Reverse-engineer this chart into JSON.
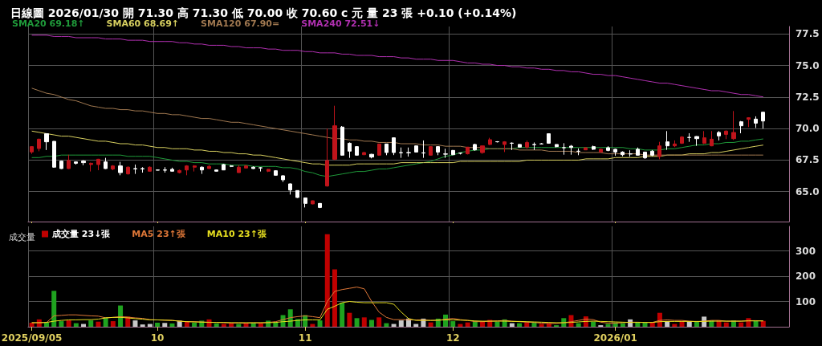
{
  "chart_data": [
    {
      "type": "candlestick",
      "title": "日線圖 2026/01/30 開 71.30 高 71.30 低 70.00 收 70.60 c 元 量 23 張 +0.10 (+0.14%)",
      "categories": [
        "2025/09/05",
        null,
        null,
        null,
        null,
        null,
        null,
        null,
        null,
        null,
        null,
        null,
        null,
        null,
        null,
        null,
        null,
        "10",
        null,
        null,
        null,
        null,
        null,
        null,
        null,
        null,
        null,
        null,
        null,
        null,
        null,
        null,
        null,
        null,
        null,
        null,
        null,
        "11",
        null,
        null,
        null,
        null,
        null,
        null,
        null,
        null,
        null,
        null,
        null,
        null,
        null,
        null,
        null,
        null,
        null,
        null,
        null,
        "12",
        null,
        null,
        null,
        null,
        null,
        null,
        null,
        null,
        null,
        null,
        null,
        null,
        null,
        null,
        null,
        null,
        null,
        null,
        null,
        null,
        null,
        "2026/01",
        null,
        null,
        null,
        null,
        null,
        null,
        null,
        null,
        null,
        null,
        null,
        null,
        null,
        null,
        null,
        null,
        null,
        null,
        null,
        null
      ],
      "series": [
        {
          "type": "candlestick",
          "ohlc": [
            [
              68.15,
              68.6,
              68.0,
              68.57
            ],
            [
              68.42,
              69.2,
              68.2,
              69.16
            ],
            [
              69.59,
              69.6,
              68.3,
              68.95
            ],
            [
              68.99,
              69.0,
              66.9,
              66.94
            ],
            [
              67.42,
              67.45,
              66.8,
              66.83
            ],
            [
              66.83,
              67.93,
              66.8,
              67.47
            ],
            [
              67.36,
              67.4,
              67.15,
              67.25
            ],
            [
              67.42,
              67.5,
              67.1,
              67.3
            ],
            [
              67.15,
              67.3,
              66.6,
              67.25
            ],
            [
              67.15,
              67.6,
              66.7,
              67.57
            ],
            [
              67.36,
              67.68,
              66.8,
              66.83
            ],
            [
              66.79,
              67.1,
              66.7,
              67.04
            ],
            [
              67.04,
              67.36,
              66.3,
              66.51
            ],
            [
              66.41,
              67.0,
              66.35,
              66.94
            ],
            [
              66.83,
              67.15,
              66.41,
              66.8
            ],
            [
              66.83,
              66.94,
              66.51,
              66.8
            ],
            [
              66.62,
              67.0,
              66.6,
              66.94
            ],
            [
              66.72,
              66.75,
              66.68,
              66.7
            ],
            [
              66.72,
              66.94,
              66.51,
              66.7
            ],
            [
              66.77,
              66.9,
              66.6,
              66.62
            ],
            [
              66.51,
              66.75,
              66.45,
              66.68
            ],
            [
              66.72,
              67.1,
              66.3,
              67.04
            ],
            [
              66.94,
              67.1,
              66.6,
              67.04
            ],
            [
              66.94,
              67.0,
              66.41,
              66.72
            ],
            [
              66.83,
              67.1,
              66.8,
              67.0
            ],
            [
              66.72,
              66.75,
              66.6,
              66.62
            ],
            [
              67.15,
              67.2,
              66.7,
              66.72
            ],
            [
              67.04,
              67.1,
              66.95,
              67.0
            ],
            [
              66.51,
              67.1,
              66.5,
              66.94
            ],
            [
              66.87,
              67.1,
              66.85,
              67.04
            ],
            [
              66.94,
              67.0,
              66.8,
              66.83
            ],
            [
              66.9,
              66.95,
              66.6,
              66.88
            ],
            [
              66.62,
              66.8,
              66.55,
              66.77
            ],
            [
              66.66,
              66.7,
              66.28,
              66.3
            ],
            [
              66.26,
              66.3,
              65.77,
              65.94
            ],
            [
              65.62,
              65.65,
              64.77,
              65.13
            ],
            [
              65.09,
              65.1,
              64.5,
              64.54
            ],
            [
              64.5,
              64.5,
              63.75,
              64.07
            ],
            [
              64.03,
              64.3,
              64.0,
              64.28
            ],
            [
              64.07,
              64.1,
              63.7,
              63.75
            ],
            [
              65.45,
              70.0,
              65.4,
              67.47
            ],
            [
              67.57,
              71.81,
              67.5,
              70.22
            ],
            [
              70.12,
              70.2,
              67.85,
              67.89
            ],
            [
              68.84,
              68.9,
              67.68,
              68.21
            ],
            [
              68.57,
              68.6,
              67.85,
              67.89
            ],
            [
              67.93,
              68.15,
              67.9,
              68.1
            ],
            [
              67.96,
              68.0,
              67.64,
              67.74
            ],
            [
              67.89,
              68.8,
              67.85,
              68.78
            ],
            [
              68.78,
              68.8,
              67.89,
              68.1
            ],
            [
              69.27,
              69.3,
              67.9,
              68.1
            ],
            [
              68.1,
              68.5,
              67.68,
              68.08
            ],
            [
              68.1,
              68.5,
              67.78,
              68.08
            ],
            [
              68.63,
              68.65,
              68.1,
              68.14
            ],
            [
              68.08,
              69.06,
              67.68,
              68.06
            ],
            [
              67.89,
              68.6,
              67.85,
              68.57
            ],
            [
              68.57,
              68.6,
              67.89,
              68.14
            ],
            [
              67.99,
              68.4,
              67.68,
              67.97
            ],
            [
              68.27,
              68.3,
              67.9,
              67.93
            ],
            [
              68.06,
              68.1,
              67.95,
              68.04
            ],
            [
              68.0,
              68.55,
              67.95,
              68.53
            ],
            [
              68.74,
              68.8,
              68.25,
              68.31
            ],
            [
              68.1,
              68.65,
              68.0,
              68.63
            ],
            [
              68.74,
              69.27,
              68.7,
              69.12
            ],
            [
              68.96,
              69.0,
              68.9,
              68.95
            ],
            [
              68.74,
              69.0,
              68.14,
              68.95
            ],
            [
              68.85,
              68.9,
              68.3,
              68.83
            ],
            [
              68.74,
              68.8,
              68.5,
              68.53
            ],
            [
              68.53,
              69.05,
              68.4,
              68.89
            ],
            [
              68.74,
              68.9,
              68.3,
              68.72
            ],
            [
              68.79,
              68.85,
              68.75,
              68.78
            ],
            [
              69.59,
              69.6,
              68.8,
              68.84
            ],
            [
              68.74,
              68.75,
              68.5,
              68.57
            ],
            [
              68.49,
              68.84,
              67.93,
              68.48
            ],
            [
              68.61,
              68.7,
              67.93,
              68.5
            ],
            [
              68.21,
              68.43,
              67.89,
              68.2
            ],
            [
              68.31,
              68.5,
              68.3,
              68.48
            ],
            [
              68.57,
              68.65,
              68.3,
              68.36
            ],
            [
              68.14,
              68.4,
              68.1,
              68.36
            ],
            [
              68.48,
              68.6,
              68.2,
              68.27
            ],
            [
              68.36,
              68.4,
              67.85,
              68.14
            ],
            [
              68.14,
              68.2,
              67.8,
              67.93
            ],
            [
              68.0,
              68.28,
              67.78,
              67.98
            ],
            [
              68.36,
              68.5,
              67.85,
              67.89
            ],
            [
              68.14,
              68.15,
              67.6,
              67.68
            ],
            [
              68.21,
              68.3,
              67.8,
              67.89
            ],
            [
              67.79,
              68.95,
              67.57,
              68.63
            ],
            [
              68.95,
              69.8,
              68.31,
              68.63
            ],
            [
              68.63,
              69.06,
              68.53,
              68.78
            ],
            [
              68.84,
              69.4,
              68.78,
              69.33
            ],
            [
              69.3,
              69.63,
              68.95,
              69.29
            ],
            [
              69.37,
              69.4,
              68.63,
              69.2
            ],
            [
              68.84,
              69.8,
              68.78,
              69.27
            ],
            [
              68.63,
              69.8,
              68.6,
              69.16
            ],
            [
              69.69,
              69.8,
              69.06,
              69.42
            ],
            [
              69.54,
              69.85,
              69.16,
              69.8
            ],
            [
              69.2,
              71.39,
              69.1,
              69.69
            ],
            [
              70.54,
              70.6,
              69.63,
              70.22
            ],
            [
              70.73,
              70.9,
              70.12,
              70.86
            ],
            [
              70.75,
              70.97,
              70.05,
              70.43
            ],
            [
              71.3,
              71.3,
              70.0,
              70.6
            ]
          ],
          "colors": [
            "#c0141b",
            "#c0141b",
            "#ffffff",
            "#ffffff",
            "#ffffff",
            "#c0141b",
            "#ffffff",
            "#ffffff",
            "#c0141b",
            "#c0141b",
            "#ffffff",
            "#c0141b",
            "#ffffff",
            "#c0141b",
            "#ffffff",
            "#ffffff",
            "#c0141b",
            "#ffffff",
            "#ffffff",
            "#ffffff",
            "#c0141b",
            "#c0141b",
            "#c0141b",
            "#ffffff",
            "#c0141b",
            "#ffffff",
            "#ffffff",
            "#ffffff",
            "#c0141b",
            "#c0141b",
            "#ffffff",
            "#ffffff",
            "#c0141b",
            "#ffffff",
            "#ffffff",
            "#ffffff",
            "#ffffff",
            "#ffffff",
            "#c0141b",
            "#ffffff",
            "#c0141b",
            "#c0141b",
            "#ffffff",
            "#ffffff",
            "#ffffff",
            "#c0141b",
            "#ffffff",
            "#c0141b",
            "#ffffff",
            "#ffffff",
            "#ffffff",
            "#ffffff",
            "#ffffff",
            "#ffffff",
            "#c0141b",
            "#ffffff",
            "#ffffff",
            "#ffffff",
            "#ffffff",
            "#c0141b",
            "#ffffff",
            "#c0141b",
            "#c0141b",
            "#ffffff",
            "#c0141b",
            "#ffffff",
            "#ffffff",
            "#c0141b",
            "#ffffff",
            "#ffffff",
            "#ffffff",
            "#ffffff",
            "#ffffff",
            "#ffffff",
            "#ffffff",
            "#c0141b",
            "#ffffff",
            "#c0141b",
            "#ffffff",
            "#ffffff",
            "#ffffff",
            "#ffffff",
            "#ffffff",
            "#ffffff",
            "#ffffff",
            "#c0141b",
            "#ffffff",
            "#c0141b",
            "#c0141b",
            "#ffffff",
            "#ffffff",
            "#c0141b",
            "#c0141b",
            "#ffffff",
            "#c0141b",
            "#c0141b",
            "#ffffff",
            "#c0141b",
            "#ffffff",
            "#ffffff"
          ]
        },
        {
          "type": "line",
          "name": "SMA20 69.18↑",
          "color": "#1f9a3a",
          "values": [
            67.7,
            67.7,
            67.8,
            67.8,
            67.9,
            67.9,
            67.9,
            67.9,
            67.9,
            67.9,
            67.9,
            67.9,
            67.9,
            67.8,
            67.8,
            67.8,
            67.8,
            67.7,
            67.6,
            67.5,
            67.4,
            67.4,
            67.3,
            67.3,
            67.2,
            67.2,
            67.2,
            67.1,
            67.1,
            67.1,
            67.0,
            67.0,
            67.0,
            67.0,
            66.9,
            66.9,
            66.8,
            66.6,
            66.5,
            66.3,
            66.2,
            66.3,
            66.4,
            66.5,
            66.6,
            66.6,
            66.7,
            66.8,
            66.8,
            66.9,
            67.0,
            67.1,
            67.2,
            67.3,
            67.4,
            67.6,
            67.8,
            67.9,
            68.1,
            68.2,
            68.3,
            68.3,
            68.4,
            68.4,
            68.4,
            68.4,
            68.5,
            68.5,
            68.5,
            68.5,
            68.5,
            68.5,
            68.5,
            68.5,
            68.5,
            68.5,
            68.5,
            68.5,
            68.5,
            68.5,
            68.5,
            68.4,
            68.4,
            68.3,
            68.3,
            68.3,
            68.4,
            68.4,
            68.5,
            68.6,
            68.7,
            68.7,
            68.8,
            68.8,
            68.9,
            68.9,
            69.0,
            69.0,
            69.1,
            69.18
          ]
        },
        {
          "type": "line",
          "name": "SMA60 68.69↑",
          "color": "#d8d060",
          "values": [
            69.8,
            69.7,
            69.6,
            69.5,
            69.4,
            69.4,
            69.3,
            69.2,
            69.1,
            69.0,
            69.0,
            68.9,
            68.8,
            68.8,
            68.7,
            68.7,
            68.6,
            68.5,
            68.5,
            68.4,
            68.4,
            68.4,
            68.3,
            68.3,
            68.2,
            68.2,
            68.1,
            68.1,
            68.0,
            68.0,
            67.9,
            67.9,
            67.8,
            67.7,
            67.6,
            67.5,
            67.4,
            67.3,
            67.2,
            67.2,
            67.1,
            67.1,
            67.1,
            67.1,
            67.2,
            67.2,
            67.2,
            67.2,
            67.2,
            67.2,
            67.3,
            67.3,
            67.3,
            67.3,
            67.3,
            67.3,
            67.3,
            67.3,
            67.4,
            67.4,
            67.4,
            67.4,
            67.4,
            67.4,
            67.4,
            67.4,
            67.4,
            67.5,
            67.5,
            67.5,
            67.5,
            67.5,
            67.5,
            67.5,
            67.5,
            67.6,
            67.6,
            67.6,
            67.6,
            67.7,
            67.7,
            67.7,
            67.7,
            67.8,
            67.8,
            67.8,
            67.9,
            67.9,
            67.9,
            68.0,
            68.0,
            68.0,
            68.1,
            68.1,
            68.2,
            68.3,
            68.4,
            68.5,
            68.6,
            68.69
          ]
        },
        {
          "type": "line",
          "name": "SMA120 67.90=",
          "color": "#a07850",
          "values": [
            73.2,
            73.0,
            72.8,
            72.7,
            72.5,
            72.3,
            72.2,
            72.0,
            71.8,
            71.7,
            71.6,
            71.6,
            71.5,
            71.5,
            71.4,
            71.4,
            71.3,
            71.2,
            71.2,
            71.1,
            71.1,
            71.0,
            70.9,
            70.8,
            70.8,
            70.7,
            70.6,
            70.5,
            70.5,
            70.4,
            70.3,
            70.2,
            70.1,
            70.0,
            69.9,
            69.8,
            69.7,
            69.6,
            69.5,
            69.4,
            69.3,
            69.2,
            69.2,
            69.1,
            69.1,
            69.0,
            69.0,
            68.9,
            68.9,
            68.9,
            68.8,
            68.8,
            68.8,
            68.7,
            68.7,
            68.7,
            68.6,
            68.6,
            68.6,
            68.5,
            68.5,
            68.5,
            68.4,
            68.4,
            68.4,
            68.4,
            68.3,
            68.3,
            68.3,
            68.3,
            68.2,
            68.2,
            68.2,
            68.2,
            68.1,
            68.1,
            68.1,
            68.1,
            68.0,
            68.0,
            68.0,
            68.0,
            68.0,
            67.9,
            67.9,
            67.9,
            67.9,
            67.9,
            67.9,
            67.9,
            67.9,
            67.9,
            67.9,
            67.9,
            67.9,
            67.9,
            67.9,
            67.9,
            67.9,
            67.9
          ]
        },
        {
          "type": "line",
          "name": "SMA240 72.51↓",
          "color": "#b030b0",
          "values": [
            77.4,
            77.4,
            77.4,
            77.3,
            77.3,
            77.3,
            77.2,
            77.2,
            77.2,
            77.2,
            77.1,
            77.1,
            77.1,
            77.0,
            77.0,
            77.0,
            76.9,
            76.9,
            76.9,
            76.9,
            76.8,
            76.8,
            76.7,
            76.7,
            76.6,
            76.6,
            76.6,
            76.5,
            76.5,
            76.4,
            76.4,
            76.4,
            76.3,
            76.3,
            76.2,
            76.2,
            76.2,
            76.1,
            76.1,
            76.0,
            76.0,
            76.0,
            75.9,
            75.9,
            75.8,
            75.8,
            75.8,
            75.7,
            75.7,
            75.7,
            75.6,
            75.6,
            75.5,
            75.5,
            75.5,
            75.4,
            75.4,
            75.4,
            75.3,
            75.2,
            75.2,
            75.1,
            75.1,
            75.0,
            75.0,
            74.9,
            74.9,
            74.8,
            74.8,
            74.7,
            74.7,
            74.6,
            74.6,
            74.5,
            74.5,
            74.4,
            74.3,
            74.3,
            74.2,
            74.2,
            74.1,
            74.0,
            73.9,
            73.8,
            73.7,
            73.6,
            73.6,
            73.5,
            73.4,
            73.3,
            73.2,
            73.1,
            73.0,
            73.0,
            72.9,
            72.8,
            72.7,
            72.7,
            72.6,
            72.51
          ]
        }
      ],
      "ylim": [
        62.63,
        78.09
      ],
      "yticks": [
        {
          "value": 65,
          "label": "65.0"
        },
        67.5,
        {
          "value": 70,
          "label": "70.0"
        },
        72.5,
        {
          "value": 75,
          "label": "75.0"
        },
        77.5
      ],
      "grid": true,
      "legend": "top left",
      "tick_labels": "y",
      "marker": "none"
    },
    {
      "type": "bar",
      "title": "成交量",
      "categories": [
        "2025/09/05",
        null,
        null,
        null,
        null,
        null,
        null,
        null,
        null,
        null,
        null,
        null,
        null,
        null,
        null,
        null,
        null,
        "10",
        null,
        null,
        null,
        null,
        null,
        null,
        null,
        null,
        null,
        null,
        null,
        null,
        null,
        null,
        null,
        null,
        null,
        null,
        null,
        "11",
        null,
        null,
        null,
        null,
        null,
        null,
        null,
        null,
        null,
        null,
        null,
        null,
        null,
        null,
        null,
        null,
        null,
        null,
        null,
        "12",
        null,
        null,
        null,
        null,
        null,
        null,
        null,
        null,
        null,
        null,
        null,
        null,
        null,
        null,
        null,
        null,
        null,
        null,
        null,
        null,
        null,
        "2026/01",
        null,
        null,
        null,
        null,
        null,
        null,
        null,
        null,
        null,
        null,
        null,
        null,
        null,
        null,
        null,
        null,
        null,
        null,
        null,
        null
      ],
      "series": [
        {
          "type": "bar",
          "name": "成交量 23↓張",
          "values": [
            16,
            29,
            16,
            142,
            22,
            25,
            14,
            11,
            25,
            20,
            37,
            22,
            84,
            40,
            25,
            9,
            11,
            16,
            15,
            13,
            24,
            22,
            16,
            24,
            29,
            13,
            11,
            13,
            11,
            14,
            16,
            13,
            24,
            19,
            46,
            69,
            30,
            46,
            11,
            25,
            366,
            227,
            95,
            55,
            34,
            37,
            27,
            37,
            14,
            11,
            25,
            32,
            11,
            32,
            17,
            32,
            48,
            22,
            11,
            17,
            22,
            22,
            27,
            20,
            29,
            14,
            14,
            17,
            17,
            11,
            13,
            6,
            34,
            46,
            14,
            41,
            20,
            6,
            11,
            17,
            14,
            29,
            19,
            17,
            17,
            55,
            22,
            11,
            22,
            22,
            19,
            40,
            25,
            25,
            17,
            25,
            17,
            34,
            25,
            23
          ],
          "colors": [
            "#c00000",
            "#c00000",
            "#1fa31f",
            "#1fa31f",
            "#1fa31f",
            "#c00000",
            "#1fa31f",
            "#c8c8c8",
            "#1fa31f",
            "#c00000",
            "#1fa31f",
            "#c00000",
            "#1fa31f",
            "#c00000",
            "#c8c8c8",
            "#c8c8c8",
            "#c8c8c8",
            "#1fa31f",
            "#c8c8c8",
            "#1fa31f",
            "#c8c8c8",
            "#c00000",
            "#1fa31f",
            "#1fa31f",
            "#c00000",
            "#1fa31f",
            "#c00000",
            "#c00000",
            "#1fa31f",
            "#c00000",
            "#1fa31f",
            "#c00000",
            "#1fa31f",
            "#1fa31f",
            "#1fa31f",
            "#1fa31f",
            "#1fa31f",
            "#1fa31f",
            "#c00000",
            "#1fa31f",
            "#c00000",
            "#c00000",
            "#1fa31f",
            "#c00000",
            "#1fa31f",
            "#c00000",
            "#1fa31f",
            "#c00000",
            "#1fa31f",
            "#c8c8c8",
            "#c8c8c8",
            "#c8c8c8",
            "#c8c8c8",
            "#c8c8c8",
            "#c00000",
            "#1fa31f",
            "#1fa31f",
            "#1fa31f",
            "#c00000",
            "#c00000",
            "#1fa31f",
            "#c00000",
            "#c00000",
            "#1fa31f",
            "#1fa31f",
            "#c8c8c8",
            "#1fa31f",
            "#c00000",
            "#1fa31f",
            "#c00000",
            "#c00000",
            "#1fa31f",
            "#1fa31f",
            "#c00000",
            "#1fa31f",
            "#c00000",
            "#1fa31f",
            "#c8c8c8",
            "#1fa31f",
            "#1fa31f",
            "#1fa31f",
            "#c8c8c8",
            "#1fa31f",
            "#1fa31f",
            "#c00000",
            "#c00000",
            "#c8c8c8",
            "#c00000",
            "#c00000",
            "#c8c8c8",
            "#1fa31f",
            "#c8c8c8",
            "#1fa31f",
            "#c00000",
            "#c00000",
            "#1fa31f",
            "#c00000",
            "#c00000",
            "#1fa31f",
            "#c00000"
          ]
        },
        {
          "type": "line",
          "name": "MA5 23↑張",
          "color": "#e07838",
          "values": [
            16,
            16,
            17,
            43,
            45,
            47,
            47,
            45,
            43,
            42,
            35,
            37,
            40,
            38,
            35,
            33,
            28,
            27,
            26,
            25,
            22,
            20,
            20,
            19,
            18,
            17,
            16,
            15,
            15,
            14,
            15,
            15,
            17,
            20,
            28,
            36,
            40,
            43,
            40,
            36,
            100,
            140,
            147,
            152,
            157,
            150,
            100,
            58,
            37,
            28,
            28,
            27,
            27,
            27,
            25,
            25,
            30,
            33,
            28,
            25,
            20,
            20,
            22,
            23,
            25,
            22,
            20,
            18,
            17,
            14,
            13,
            13,
            16,
            20,
            25,
            30,
            28,
            18,
            14,
            14,
            16,
            18,
            18,
            17,
            17,
            25,
            27,
            25,
            25,
            22,
            20,
            22,
            25,
            25,
            22,
            22,
            22,
            24,
            24,
            23
          ]
        },
        {
          "type": "line",
          "name": "MA10 23↑張",
          "color": "#e8e020",
          "values": [
            16,
            16,
            17,
            22,
            25,
            27,
            27,
            28,
            28,
            30,
            35,
            37,
            37,
            35,
            32,
            30,
            27,
            27,
            26,
            25,
            22,
            20,
            19,
            18,
            17,
            17,
            17,
            16,
            16,
            16,
            16,
            16,
            16,
            17,
            20,
            22,
            25,
            27,
            27,
            27,
            69,
            81,
            95,
            100,
            97,
            95,
            95,
            95,
            95,
            89,
            58,
            32,
            25,
            25,
            25,
            26,
            27,
            27,
            26,
            25,
            23,
            22,
            22,
            22,
            22,
            21,
            21,
            20,
            19,
            18,
            17,
            16,
            16,
            17,
            19,
            21,
            22,
            21,
            20,
            19,
            18,
            17,
            17,
            17,
            17,
            20,
            21,
            21,
            21,
            21,
            21,
            21,
            22,
            22,
            22,
            22,
            22,
            23,
            23,
            23
          ]
        }
      ],
      "ylim": [
        0,
        397
      ],
      "yticks": [
        100,
        200,
        300
      ],
      "grid": true,
      "legend": "top left",
      "marker": "none"
    }
  ]
}
